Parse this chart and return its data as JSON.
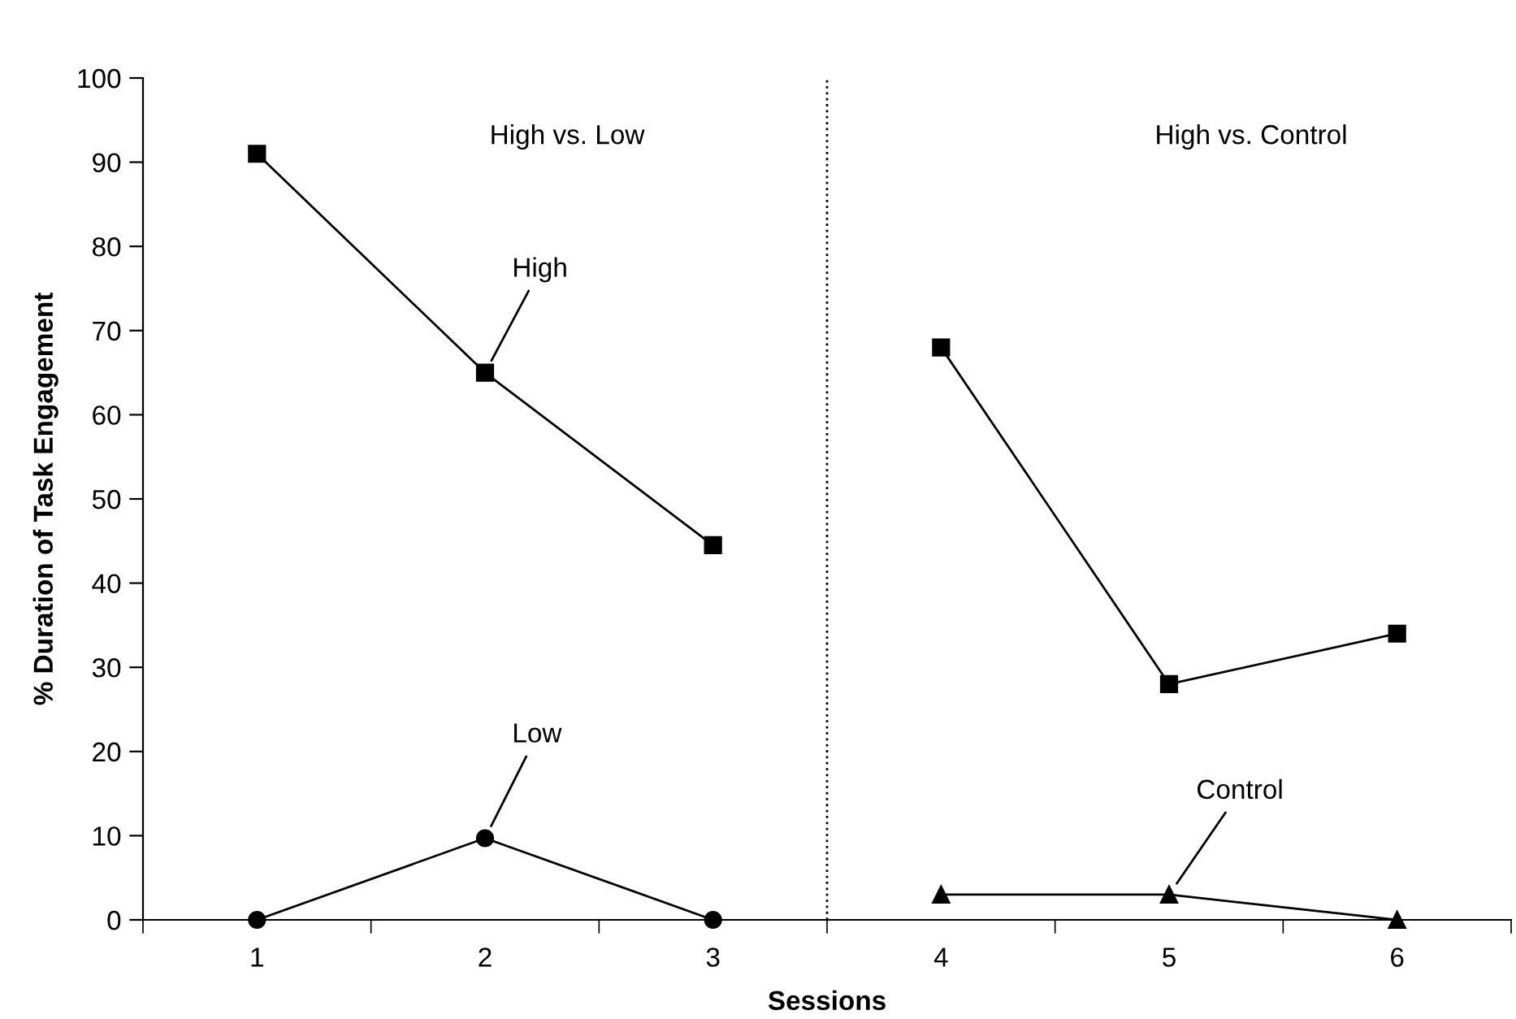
{
  "chart_data": {
    "type": "line",
    "xlabel": "Sessions",
    "ylabel": "% Duration of Task Engagement",
    "x": [
      1,
      2,
      3,
      4,
      5,
      6
    ],
    "xlim": [
      0.5,
      6.5
    ],
    "xticks": [
      {
        "value": 0.5,
        "label": null
      },
      {
        "value": 1,
        "label": "1"
      },
      {
        "value": 1.5,
        "label": null
      },
      {
        "value": 2,
        "label": "2"
      },
      {
        "value": 2.5,
        "label": null
      },
      {
        "value": 3,
        "label": "3"
      },
      {
        "value": 3.5,
        "label": null
      },
      {
        "value": 4,
        "label": "4"
      },
      {
        "value": 4.5,
        "label": null
      },
      {
        "value": 5,
        "label": "5"
      },
      {
        "value": 5.5,
        "label": null
      },
      {
        "value": 6,
        "label": "6"
      },
      {
        "value": 6.5,
        "label": null
      }
    ],
    "ylim": [
      0,
      100
    ],
    "yticks": [
      0,
      10,
      20,
      30,
      40,
      50,
      60,
      70,
      80,
      90,
      100
    ],
    "grid": false,
    "legend": false,
    "line_style": "solid",
    "series": [
      {
        "name": "High",
        "color": "#000000",
        "marker": "square",
        "values": [
          91,
          65,
          44.5,
          null,
          null,
          null
        ]
      },
      {
        "color": "#000000",
        "marker": "square",
        "values": [
          null,
          null,
          null,
          68,
          28,
          34
        ]
      },
      {
        "name": "Low",
        "color": "#000000",
        "marker": "circle",
        "values": [
          0,
          9.7,
          0,
          null,
          null,
          null
        ]
      },
      {
        "name": "Control",
        "color": "#000000",
        "marker": "triangle",
        "values": [
          null,
          null,
          null,
          3,
          3,
          0
        ]
      }
    ],
    "ref_lines": [
      {
        "axis": "x",
        "value": 3.5,
        "line_style": "dotted",
        "color": "#000000"
      }
    ],
    "annotations": [
      "High vs. Low",
      "High vs. Control"
    ]
  }
}
